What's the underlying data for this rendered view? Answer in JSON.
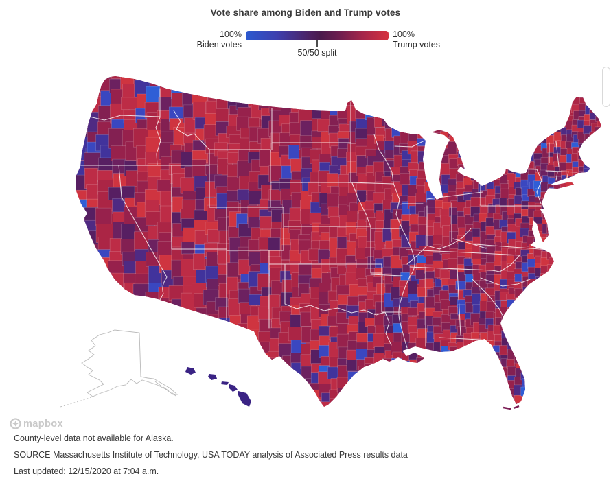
{
  "header": {
    "title": "Vote share among Biden and Trump votes"
  },
  "legend": {
    "left_value": "100%",
    "left_label": "Biden votes",
    "right_value": "100%",
    "right_label": "Trump votes",
    "mid_label": "50/50 split",
    "gradient_stops": [
      "#2b59cf 0%",
      "#3e3fae 22%",
      "#4c2161 45%",
      "#491a4c 52%",
      "#6c1d4e 65%",
      "#a5264a 82%",
      "#d5323f 100%"
    ]
  },
  "attribution": {
    "label": "mapbox"
  },
  "footer": {
    "note": "County-level data not available for Alaska.",
    "source": "SOURCE Massachusetts Institute of Technology, USA TODAY analysis of Associated Press results data",
    "updated": "Last updated: 12/15/2020 at 7:04 a.m."
  },
  "map": {
    "base_color": "#a12447",
    "hawaii_color": "#3a2384",
    "alaska_outline_color": "#b9b9b9",
    "county_line_color": "rgba(255,255,255,0.30)",
    "state_line_color": "rgba(255,255,255,0.82)",
    "palette": [
      {
        "hex": "#cf3440",
        "weight": 8,
        "family": "red"
      },
      {
        "hex": "#bd2c46",
        "weight": 15,
        "family": "red"
      },
      {
        "hex": "#ab2545",
        "weight": 15,
        "family": "red"
      },
      {
        "hex": "#97214c",
        "weight": 12,
        "family": "red"
      },
      {
        "hex": "#832052",
        "weight": 9,
        "family": "purple"
      },
      {
        "hex": "#6c2160",
        "weight": 7,
        "family": "purple"
      },
      {
        "hex": "#571f62",
        "weight": 5,
        "family": "purple"
      },
      {
        "hex": "#4f2a83",
        "weight": 3.5,
        "family": "purple"
      },
      {
        "hex": "#41339c",
        "weight": 3,
        "family": "blue"
      },
      {
        "hex": "#3a47c0",
        "weight": 2.5,
        "family": "blue"
      },
      {
        "hex": "#2f5ed6",
        "weight": 1.2,
        "family": "blue"
      }
    ],
    "blue_zones": [
      [
        556,
        368,
        34,
        112,
        6
      ],
      [
        596,
        396,
        100,
        52,
        3.5
      ],
      [
        424,
        538,
        60,
        60,
        6
      ],
      [
        362,
        462,
        28,
        24,
        5
      ],
      [
        330,
        390,
        62,
        58,
        3
      ],
      [
        296,
        362,
        44,
        34,
        3.5
      ],
      [
        252,
        396,
        56,
        52,
        2
      ],
      [
        98,
        238,
        56,
        132,
        3.2
      ],
      [
        128,
        368,
        56,
        56,
        2.5
      ],
      [
        136,
        108,
        44,
        88,
        2.8
      ],
      [
        768,
        182,
        104,
        92,
        2.6
      ],
      [
        752,
        246,
        56,
        46,
        3
      ],
      [
        596,
        286,
        34,
        34,
        3.6
      ],
      [
        690,
        250,
        30,
        28,
        3
      ],
      [
        656,
        414,
        42,
        30,
        3.5
      ],
      [
        734,
        528,
        44,
        64,
        2.6
      ],
      [
        352,
        288,
        34,
        54,
        3.2
      ],
      [
        478,
        148,
        88,
        52,
        2.4
      ],
      [
        400,
        248,
        26,
        22,
        4
      ],
      [
        752,
        306,
        36,
        26,
        3
      ],
      [
        588,
        496,
        26,
        20,
        3
      ],
      [
        524,
        502,
        26,
        22,
        2.2
      ]
    ],
    "red_zones": [
      [
        380,
        150,
        185,
        310,
        1.8
      ],
      [
        592,
        330,
        110,
        48,
        1.6
      ],
      [
        232,
        130,
        150,
        100,
        1.4
      ],
      [
        376,
        440,
        116,
        70,
        1.5
      ]
    ]
  }
}
